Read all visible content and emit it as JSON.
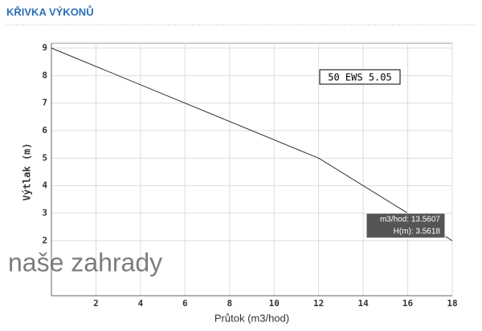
{
  "chart_data": {
    "type": "line",
    "title": "KŘIVKA VÝKONŮ",
    "x": [
      0,
      12,
      18
    ],
    "series": [
      {
        "name": "50 EWS 5.05",
        "color": "#333333",
        "values": [
          9,
          5,
          2
        ]
      }
    ],
    "xlim": [
      0,
      18
    ],
    "ylim": [
      0,
      9
    ],
    "xticks": [
      2,
      4,
      6,
      8,
      10,
      12,
      14,
      16,
      18
    ],
    "yticks": [
      2,
      3,
      4,
      5,
      6,
      7,
      8,
      9
    ],
    "grid": true,
    "xlabel": "Průtok (m3/hod)",
    "ylabel": "Výtlak (m)",
    "tooltip": [
      "m3/hod: 13.5607",
      "H(m): 3.5618"
    ],
    "watermark": "naše zahrady"
  }
}
